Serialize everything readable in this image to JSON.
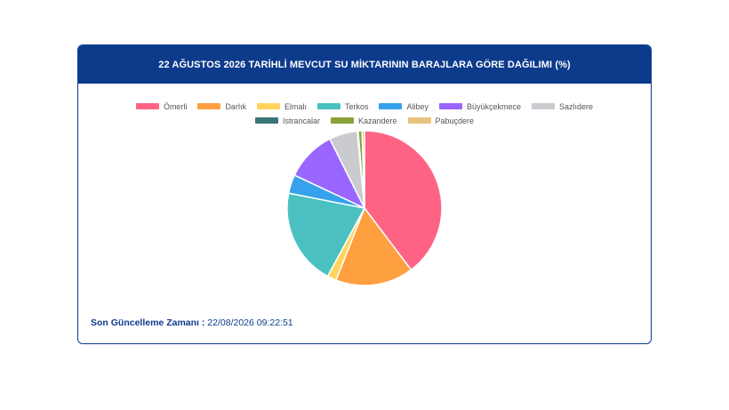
{
  "card": {
    "title": "22 AĞUSTOS 2026 TARİHLİ MEVCUT SU MİKTARININ BARAJLARA GÖRE DAĞILIMI (%)"
  },
  "footer": {
    "label": "Son Güncelleme Zamanı :",
    "value": "22/08/2026 09:22:51"
  },
  "chart_data": {
    "type": "pie",
    "title": "22 AĞUSTOS 2026 TARİHLİ MEVCUT SU MİKTARININ BARAJLARA GÖRE DAĞILIMI (%)",
    "legend_position": "top",
    "categories": [
      "Ömerli",
      "Darlık",
      "Elmalı",
      "Terkos",
      "Alibey",
      "Büyükçekmece",
      "Sazlıdere",
      "Istrancalar",
      "Kazandere",
      "Pabuçdere"
    ],
    "values": [
      39.7,
      16.3,
      1.9,
      20.2,
      3.9,
      10.6,
      5.9,
      0.2,
      0.8,
      0.5
    ],
    "colors": [
      "#ff6384",
      "#ffa040",
      "#ffd35c",
      "#4bc0c0",
      "#36a2eb",
      "#9966ff",
      "#c9cbcf",
      "#3a7575",
      "#8aa13a",
      "#e8c37d"
    ]
  }
}
